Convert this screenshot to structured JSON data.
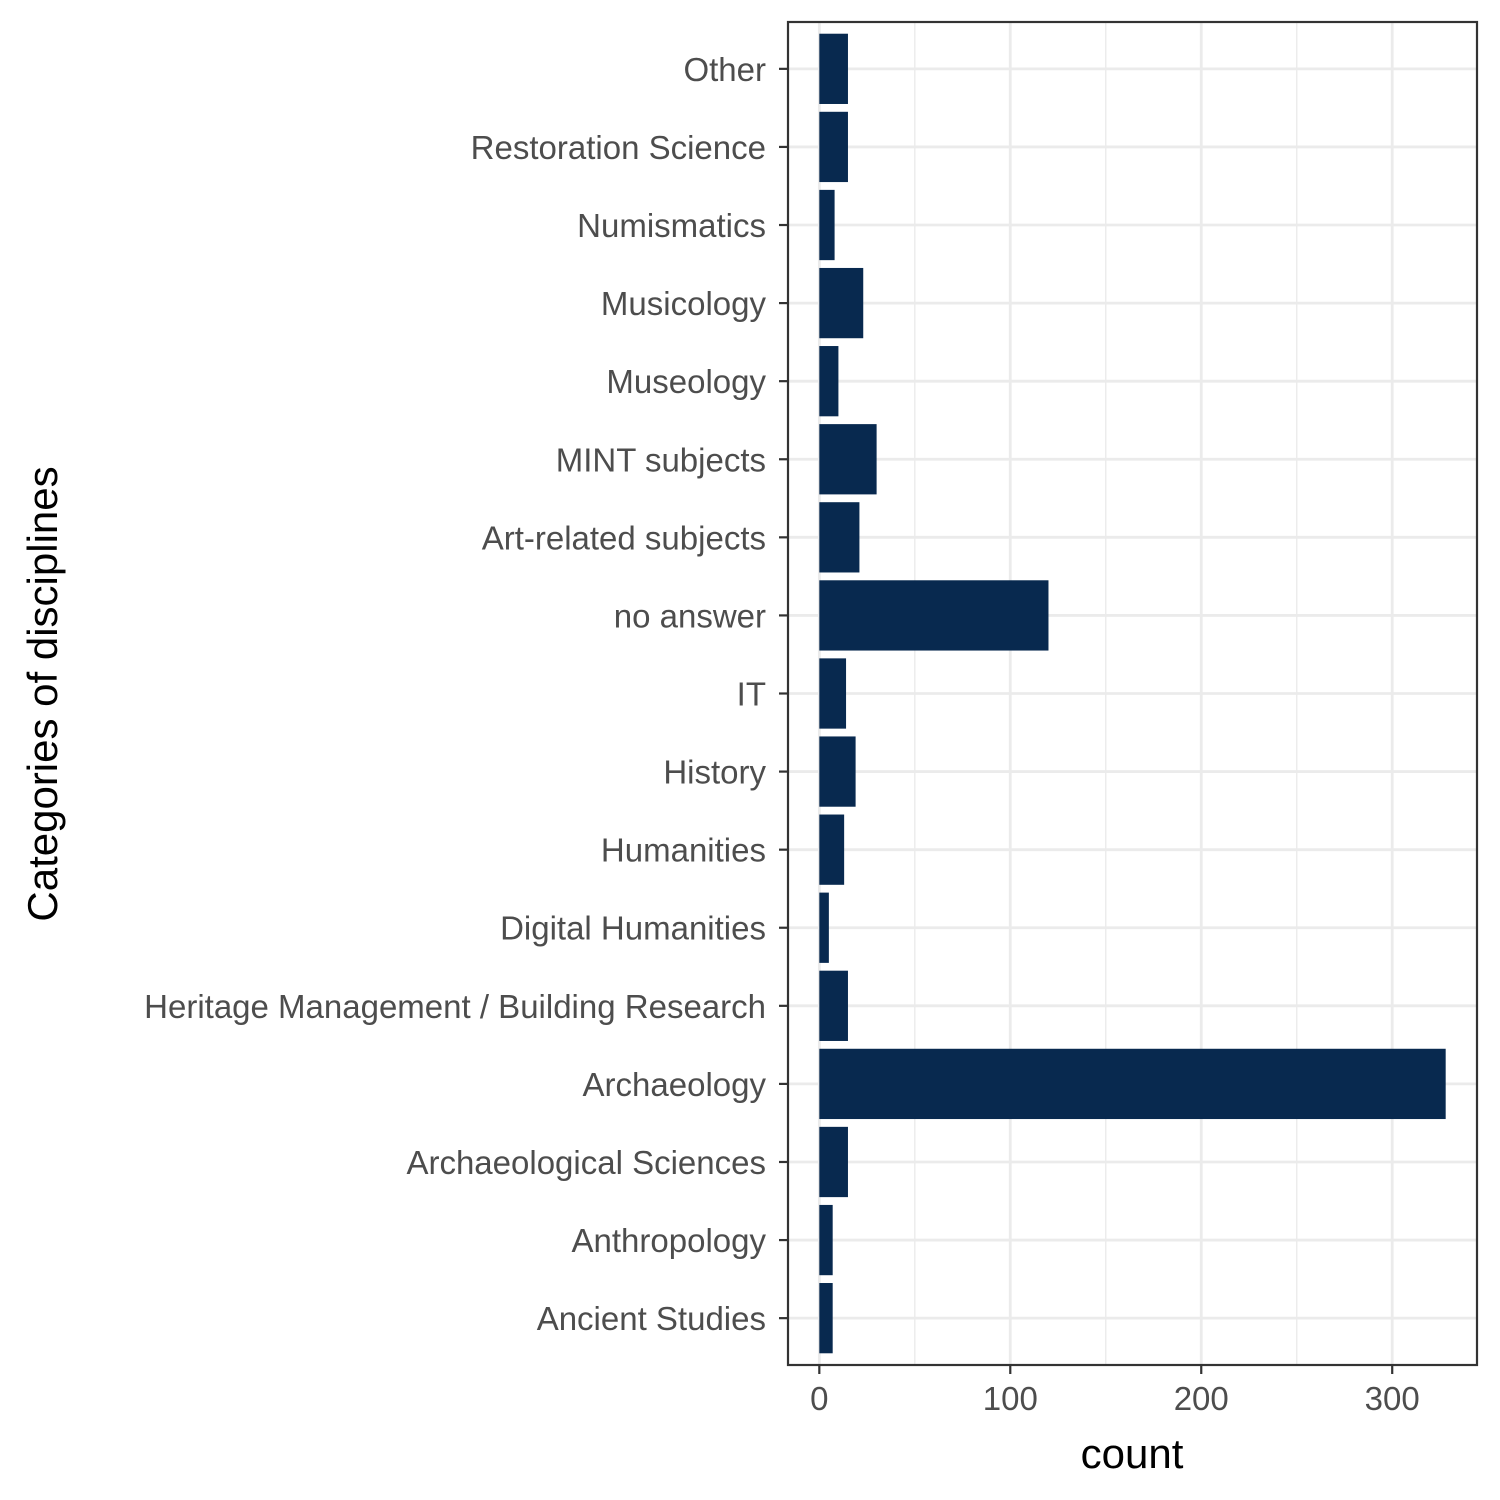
{
  "chart_data": {
    "type": "bar",
    "orientation": "horizontal",
    "categories": [
      "Ancient Studies",
      "Anthropology",
      "Archaeological Sciences",
      "Archaeology",
      "Heritage Management / Building Research",
      "Digital Humanities",
      "Humanities",
      "History",
      "IT",
      "no answer",
      "Art-related subjects",
      "MINT subjects",
      "Museology",
      "Musicology",
      "Numismatics",
      "Restoration Science",
      "Other"
    ],
    "values": [
      7,
      7,
      15,
      328,
      15,
      5,
      13,
      19,
      14,
      120,
      21,
      30,
      10,
      23,
      8,
      15,
      15
    ],
    "bar_color": "#08294f",
    "xlabel": "count",
    "ylabel": "Categories of disciplines",
    "xlim": [
      -16.4,
      344.4
    ],
    "xticks": [
      0,
      100,
      200,
      300
    ],
    "grid": true,
    "theme": "bw"
  }
}
